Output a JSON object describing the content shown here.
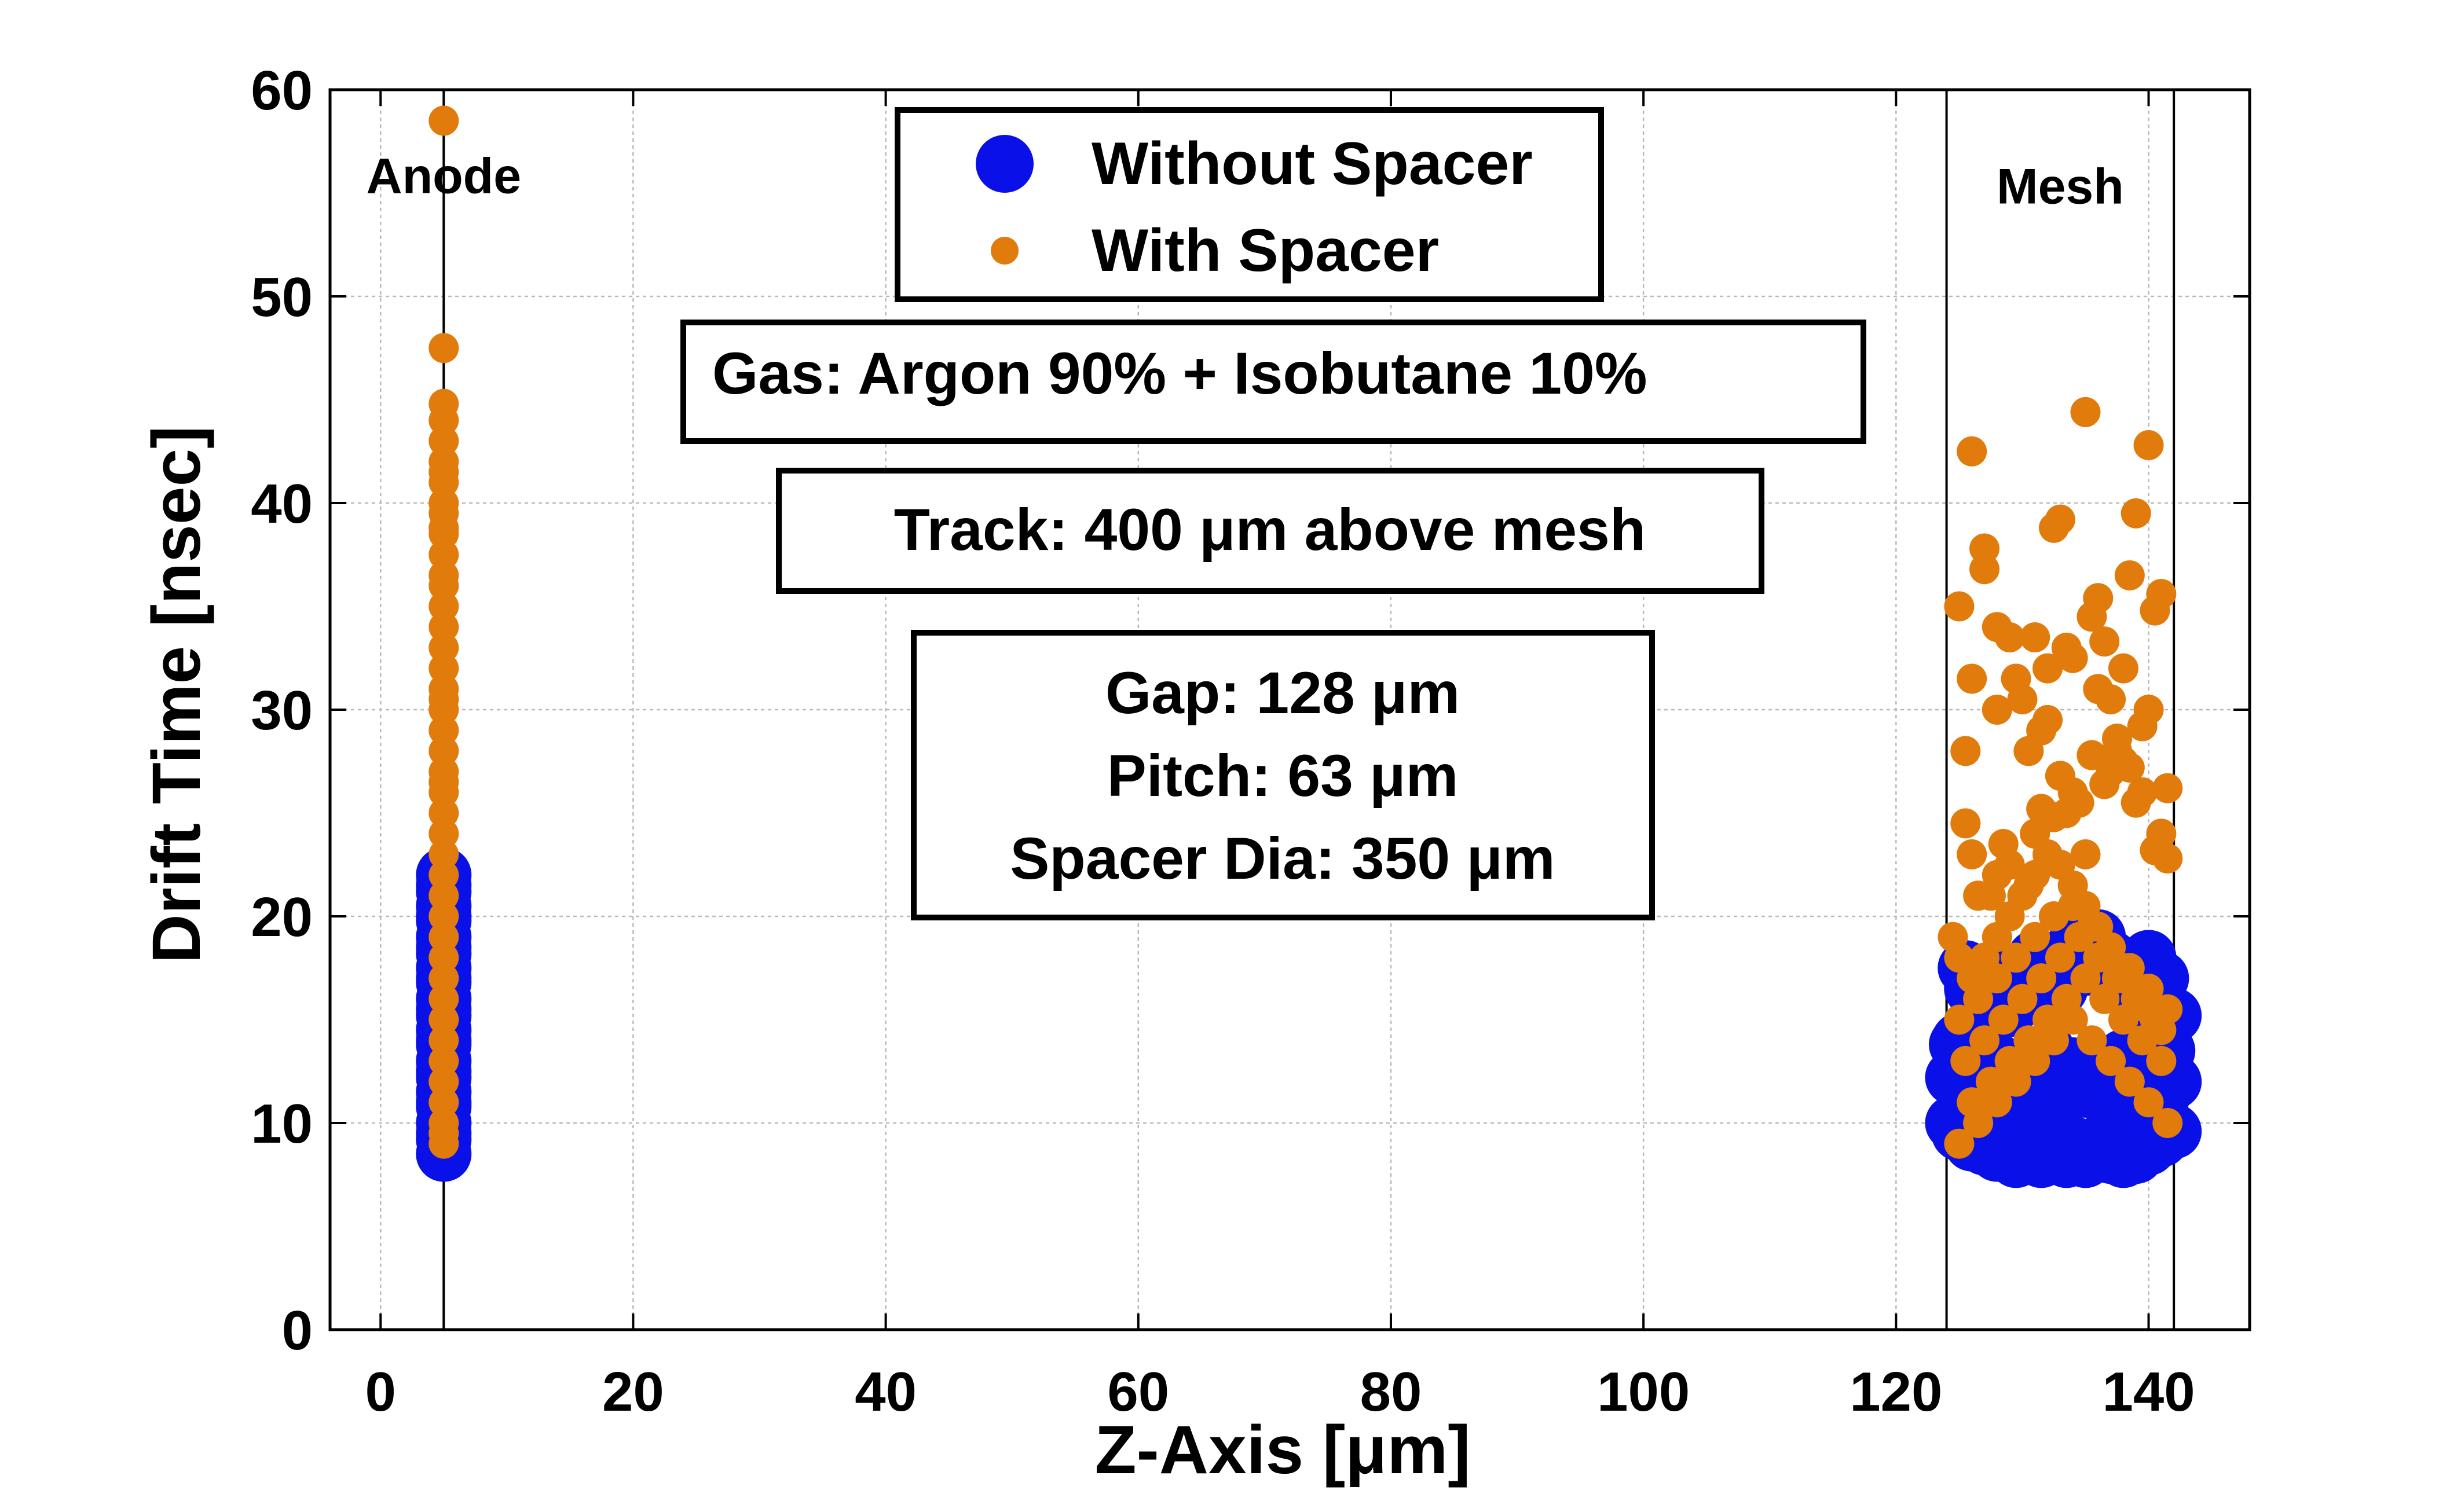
{
  "chart_data": {
    "type": "scatter",
    "title": "",
    "xlabel": "Z-Axis [μm]",
    "ylabel": "Drift Time [nsec]",
    "xlim": [
      -4,
      148
    ],
    "ylim": [
      0,
      60
    ],
    "xticks": [
      0,
      20,
      40,
      60,
      80,
      100,
      120,
      140
    ],
    "yticks": [
      0,
      10,
      20,
      30,
      40,
      50,
      60
    ],
    "grid": true,
    "legend_position": "top-center",
    "reference_lines_x": [
      5,
      124,
      142
    ],
    "region_labels": [
      {
        "text": "Anode",
        "x": 5,
        "y": 55
      },
      {
        "text": "Mesh",
        "x": 133,
        "y": 54.5
      }
    ],
    "annotations": [
      {
        "lines": [
          "Gas: Argon 90% + Isobutane 10%"
        ]
      },
      {
        "lines": [
          "Track: 400 μm above mesh"
        ]
      },
      {
        "lines": [
          "Gap: 128 μm",
          "Pitch: 63 μm",
          "Spacer Dia: 350 μm"
        ]
      }
    ],
    "series": [
      {
        "name": "Without Spacer",
        "color": "#0a10e8",
        "marker": "large-circle",
        "x": [
          5,
          5,
          5,
          5,
          5,
          5,
          5,
          5,
          5,
          5,
          5,
          5,
          5,
          5,
          5,
          5,
          5,
          5,
          5,
          5,
          5,
          5,
          5,
          5,
          5,
          5,
          5,
          5,
          124.5,
          124.5,
          124.8,
          125,
          125.5,
          126,
          126.5,
          127,
          127.5,
          128,
          128.5,
          129,
          129.5,
          130,
          130.5,
          131,
          131.5,
          132,
          132.5,
          133,
          133.5,
          134,
          134.5,
          135,
          135.5,
          136,
          136.5,
          137,
          137.5,
          138,
          138.5,
          139,
          139.5,
          140,
          140.5,
          141,
          141.5,
          142,
          125,
          126,
          127,
          128,
          129,
          130,
          131,
          132,
          133,
          134,
          135,
          136,
          137,
          138,
          139,
          140,
          141,
          126,
          128,
          130,
          132,
          134,
          136,
          138,
          140,
          127,
          129,
          131,
          133,
          135,
          137,
          139,
          141,
          142,
          141.5,
          141,
          142,
          140.5,
          125.5
        ],
        "y": [
          8.5,
          9.2,
          10,
          10.8,
          11.5,
          12.2,
          13,
          13.8,
          14.5,
          15.2,
          16,
          16.8,
          17.5,
          18.2,
          19,
          19.8,
          20.5,
          21.2,
          22,
          9.5,
          11,
          12.5,
          14,
          15.5,
          17,
          18.5,
          20,
          21.5,
          12.2,
          10,
          13.8,
          9.5,
          11.5,
          9,
          10.5,
          8.8,
          10.2,
          8.5,
          9.5,
          8.8,
          8.2,
          9,
          8.5,
          9.5,
          8.2,
          8.8,
          9.2,
          8.5,
          8.2,
          9,
          8.6,
          8.2,
          8.8,
          8.5,
          9.2,
          8.4,
          8.9,
          8.2,
          8.7,
          8.4,
          9.1,
          8.8,
          9.5,
          9.2,
          9.8,
          9.6,
          14,
          16.5,
          15,
          17.5,
          15.5,
          16,
          18,
          17,
          16.5,
          18.5,
          17.5,
          19,
          18,
          17.5,
          16.5,
          18,
          17,
          12.5,
          13,
          12,
          13.5,
          12.8,
          12.2,
          13.2,
          12.6,
          11,
          11.5,
          10.8,
          11.2,
          11.6,
          10.9,
          11.4,
          11.1,
          15.2,
          13.5,
          14.5,
          12,
          16.8,
          17.5
        ]
      },
      {
        "name": "With Spacer",
        "color": "#e07b0c",
        "marker": "small-circle",
        "x": [
          5,
          5,
          5,
          5,
          5,
          5,
          5,
          5,
          5,
          5,
          5,
          5,
          5,
          5,
          5,
          5,
          5,
          5,
          5,
          5,
          5,
          5,
          5,
          5,
          5,
          5,
          5,
          5,
          5,
          5,
          5,
          5,
          5,
          5,
          5,
          5,
          5,
          5,
          5,
          5,
          5,
          5,
          5,
          5,
          5,
          124.5,
          125,
          125.5,
          126,
          126,
          127,
          127,
          128,
          128,
          129,
          129.5,
          130,
          130.5,
          131,
          131.5,
          132,
          132.5,
          133,
          133.5,
          134,
          134.5,
          135,
          135.5,
          136,
          136.5,
          137,
          137.5,
          138,
          138.5,
          139,
          139.5,
          140,
          140.5,
          141,
          141.5,
          136,
          140,
          132,
          138,
          133.5,
          135,
          131,
          128,
          127.5,
          125.5,
          126,
          129,
          130.5,
          134,
          137,
          139,
          141,
          141.5,
          125,
          126.5,
          128.5,
          131.5,
          133,
          135.5,
          137.5,
          139.5,
          140.5,
          132.5,
          136.5,
          138.5,
          126,
          127,
          128,
          129,
          130,
          131,
          132,
          133,
          134,
          135,
          136,
          137,
          138,
          139,
          140,
          141,
          125,
          126.5,
          128,
          129.5,
          131,
          132.5,
          134,
          135.5,
          137,
          138.5,
          140,
          141.5,
          125.5,
          127,
          128.5,
          130,
          131.5,
          133,
          134.5,
          136,
          137.5,
          139,
          140.5,
          126,
          127.5,
          129,
          130.5,
          132,
          133.5,
          135,
          136.5,
          138,
          139.5,
          141,
          125,
          126.5,
          128,
          129.5,
          131,
          132.5,
          134,
          135.5,
          137,
          138.5,
          140,
          141.5
        ],
        "y": [
          58.5,
          47.5,
          44.8,
          44,
          43,
          41.5,
          41,
          39.5,
          38.5,
          37.5,
          36,
          35,
          34,
          33,
          32,
          31,
          30,
          29,
          28,
          27,
          26,
          25,
          24,
          23,
          22,
          21,
          20,
          19,
          18,
          17,
          16,
          15,
          14,
          13,
          12,
          11,
          10,
          9,
          38.8,
          36.5,
          40,
          42,
          30.5,
          26.5,
          9.5,
          19,
          35,
          28,
          31.5,
          42.5,
          36.8,
          37.8,
          34,
          30,
          33.5,
          31.5,
          30.5,
          28,
          33.5,
          29,
          32,
          38.8,
          39.2,
          33,
          32.5,
          25.5,
          44.4,
          34.5,
          35.4,
          33.3,
          30.5,
          28,
          32,
          36.5,
          39.5,
          26,
          42.8,
          34.8,
          35.6,
          26.2,
          31,
          30,
          29.5,
          27.5,
          25,
          23,
          24,
          22,
          21,
          24.5,
          23,
          22.5,
          21.5,
          26,
          27,
          25.5,
          24,
          22.8,
          18,
          21,
          23.5,
          25.2,
          26.8,
          27.8,
          28.6,
          29.2,
          23.2,
          24.8,
          26.4,
          27.2,
          17,
          18,
          19,
          20,
          21,
          22,
          23,
          22.5,
          21.5,
          20.5,
          19.5,
          18.5,
          17.5,
          16.5,
          15.5,
          14.5,
          15,
          16,
          17,
          18,
          19,
          20,
          20.5,
          19.5,
          18.5,
          17.5,
          16.5,
          15.5,
          13,
          14,
          15,
          16,
          17,
          18,
          19,
          18,
          17,
          16,
          15,
          11,
          12,
          13,
          14,
          15,
          16,
          17,
          16,
          15,
          14,
          13,
          9,
          10,
          11,
          12,
          13,
          14,
          15,
          14,
          13,
          12,
          11,
          10
        ]
      }
    ]
  }
}
